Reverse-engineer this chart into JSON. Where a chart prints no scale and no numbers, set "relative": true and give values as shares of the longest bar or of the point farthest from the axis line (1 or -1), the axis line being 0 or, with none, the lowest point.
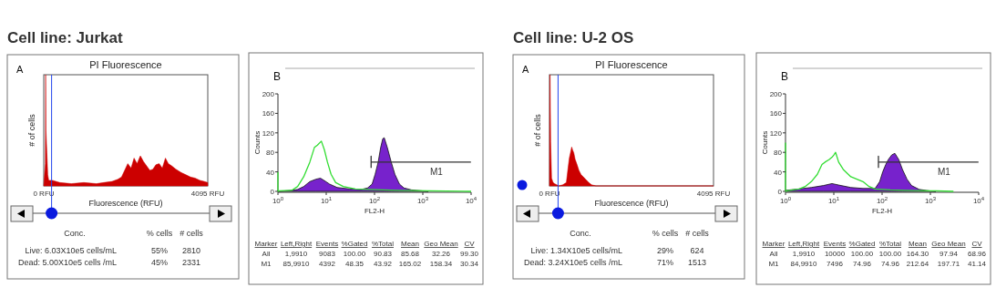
{
  "chart_data": [
    {
      "type": "area",
      "title": "PI Fluorescence",
      "xlabel": "Fluorescence (RFU)",
      "ylabel": "# of cells",
      "relative": true,
      "color": "#cc0000",
      "xlim": [
        0,
        4095
      ],
      "xticks": [
        {
          "value": 0,
          "label": "0 RFU"
        },
        {
          "value": 4095,
          "label": "4095 RFU"
        }
      ],
      "x": [
        0,
        40,
        47,
        55,
        78,
        100,
        125,
        219,
        400,
        689,
        1000,
        1315,
        1500,
        1707,
        1850,
        1942,
        2020,
        2098,
        2180,
        2255,
        2330,
        2412,
        2490,
        2568,
        2650,
        2725,
        2800,
        2881,
        2960,
        3038,
        3110,
        3195,
        3300,
        3430,
        3550,
        3664,
        3780,
        3899,
        4000,
        4095
      ],
      "values": [
        0,
        0.2,
        1,
        0.5,
        0.3,
        0.1,
        0.05,
        0.05,
        0.03,
        0.02,
        0.03,
        0.02,
        0.03,
        0.04,
        0.06,
        0.08,
        0.14,
        0.2,
        0.16,
        0.25,
        0.2,
        0.27,
        0.22,
        0.18,
        0.14,
        0.15,
        0.19,
        0.2,
        0.16,
        0.25,
        0.2,
        0.18,
        0.15,
        0.12,
        0.1,
        0.08,
        0.07,
        0.05,
        0.04,
        0.03
      ],
      "ref_lines": [
        {
          "axis": "x",
          "value": 196,
          "color": "#2244ee"
        }
      ],
      "annotations": [
        "Cell line: Jurkat",
        "A",
        "Conc.",
        "% cells",
        "# cells",
        "Live: 6.03X10e5 cells/mL",
        "55%",
        "2810",
        "Dead: 5.00X10e5 cells /mL",
        "45%",
        "2331"
      ]
    },
    {
      "type": "area",
      "xlabel": "FL2-H",
      "ylabel": "Counts",
      "log": "x",
      "xlim": [
        1,
        10000
      ],
      "ylim": [
        0,
        200
      ],
      "yticks": [
        0,
        40,
        80,
        120,
        160,
        200
      ],
      "xticks": [
        {
          "value": 1,
          "label": "10$^{0}$"
        },
        {
          "value": 10,
          "label": "10$^{1}$"
        },
        {
          "value": 100,
          "label": "10$^{2}$"
        },
        {
          "value": 1000,
          "label": "10$^{3}$"
        },
        {
          "value": 10000,
          "label": "10$^{4}$"
        }
      ],
      "series": [
        {
          "type": "area",
          "color": "#7722cc",
          "x": [
            1,
            1.92,
            2.56,
            3.42,
            4.57,
            6.11,
            7.6,
            9.17,
            11.7,
            16.8,
            30.1,
            53.7,
            71.7,
            89.1,
            103,
            119,
            134,
            148,
            159,
            184,
            222,
            264,
            328,
            407,
            585,
            971,
            1300
          ],
          "values": [
            0,
            2,
            4,
            10,
            20,
            25,
            27,
            22,
            15,
            8,
            5,
            4,
            7,
            15,
            35,
            60,
            90,
            108,
            110,
            90,
            60,
            35,
            15,
            7,
            3,
            1,
            0
          ]
        },
        {
          "type": "line",
          "color": "#33dd33",
          "x": [
            1,
            1,
            1.07,
            1.92,
            2.56,
            3.42,
            4.57,
            5.69,
            6.57,
            7.93,
            9.17,
            10.6,
            12.6,
            15.7,
            22.5,
            40.2,
            71.7,
            148,
            305,
            1300,
            10000
          ],
          "values": [
            40,
            0,
            1,
            2,
            10,
            30,
            60,
            90,
            95,
            103,
            85,
            60,
            35,
            18,
            10,
            5,
            4,
            3,
            2,
            1,
            0
          ]
        },
        {
          "type": "line",
          "name": "M1",
          "color": "#333333",
          "x": [
            85,
            85,
            85,
            9910
          ],
          "values": [
            48,
            72,
            60,
            60
          ]
        }
      ],
      "annotations": [
        "B",
        "Marker",
        "Left,Right",
        "Events",
        "%Gated",
        "%Total",
        "Mean",
        "Geo Mean",
        "CV",
        "All",
        "1,9910",
        "9083",
        "100.00",
        "90.83",
        "85.68",
        "32.26",
        "99.30",
        "M1",
        "85,9910",
        "4392",
        "48.35",
        "43.92",
        "165.02",
        "158.34",
        "30.34"
      ]
    },
    {
      "type": "area",
      "title": "PI Fluorescence",
      "xlabel": "Fluorescence (RFU)",
      "ylabel": "# of cells",
      "relative": true,
      "color": "#cc0000",
      "xlim": [
        0,
        4095
      ],
      "xticks": [
        {
          "value": 0,
          "label": "0 RFU"
        },
        {
          "value": 4095,
          "label": "4095 RFU"
        }
      ],
      "x": [
        0,
        10,
        15,
        30,
        52,
        90,
        126,
        180,
        237,
        330,
        421,
        460,
        495,
        525,
        554,
        580,
        606,
        640,
        680,
        735,
        791,
        850,
        902,
        980,
        1050,
        1160,
        4095
      ],
      "values": [
        0,
        1,
        1,
        0.4,
        0.07,
        0.03,
        0.02,
        0.01,
        0,
        0.01,
        0.03,
        0.15,
        0.25,
        0.3,
        0.35,
        0.32,
        0.3,
        0.24,
        0.2,
        0.14,
        0.1,
        0.08,
        0.06,
        0.03,
        0.01,
        0,
        0
      ],
      "ref_lines": [
        {
          "axis": "x",
          "value": 214,
          "color": "#2244ee"
        }
      ],
      "annotations": [
        "Cell line: U-2 OS",
        "A",
        "Conc.",
        "% cells",
        "# cells",
        "Live: 1.34X10e5 cells/mL",
        "29%",
        "624",
        "Dead: 3.24X10e5 cells /mL",
        "71%",
        "1513"
      ]
    },
    {
      "type": "area",
      "xlabel": "FL2-H",
      "ylabel": "Counts",
      "log": "x",
      "xlim": [
        1,
        10000
      ],
      "ylim": [
        0,
        200
      ],
      "yticks": [
        0,
        40,
        80,
        120,
        160,
        200
      ],
      "xticks": [
        {
          "value": 1,
          "label": "10$^{0}$"
        },
        {
          "value": 10,
          "label": "10$^{1}$"
        },
        {
          "value": 100,
          "label": "10$^{2}$"
        },
        {
          "value": 1000,
          "label": "10$^{3}$"
        },
        {
          "value": 10000,
          "label": "10$^{4}$"
        }
      ],
      "series": [
        {
          "type": "area",
          "color": "#7722cc",
          "x": [
            1,
            1.92,
            3.42,
            6.11,
            9.17,
            12.6,
            22.5,
            40.2,
            71.7,
            89.1,
            103,
            119,
            134,
            159,
            184,
            222,
            264,
            328,
            407,
            585,
            971,
            1300
          ],
          "values": [
            2,
            5,
            8,
            12,
            16,
            13,
            8,
            6,
            6,
            20,
            40,
            55,
            65,
            75,
            78,
            65,
            45,
            25,
            12,
            4,
            1,
            0
          ]
        },
        {
          "type": "line",
          "color": "#33dd33",
          "x": [
            1,
            1,
            1.07,
            1.92,
            2.56,
            3.42,
            4.57,
            5.69,
            6.57,
            7.93,
            9.17,
            10.1,
            10.9,
            12.6,
            15.7,
            22.5,
            30.1,
            40.2,
            53.7,
            71.7,
            148,
            305,
            1300,
            3000
          ],
          "values": [
            100,
            0,
            1,
            5,
            10,
            20,
            35,
            55,
            60,
            65,
            70,
            75,
            80,
            60,
            45,
            30,
            25,
            20,
            10,
            5,
            3,
            2,
            1,
            0
          ]
        },
        {
          "type": "line",
          "name": "M1",
          "color": "#333333",
          "x": [
            84,
            84,
            84,
            9910
          ],
          "values": [
            48,
            72,
            60,
            60
          ]
        }
      ],
      "annotations": [
        "B",
        "Marker",
        "Left,Right",
        "Events",
        "%Gated",
        "%Total",
        "Mean",
        "Geo Mean",
        "CV",
        "All",
        "1,9910",
        "10000",
        "100.00",
        "100.00",
        "164.30",
        "97.94",
        "68.96",
        "M1",
        "84,9910",
        "7496",
        "74.96",
        "74.96",
        "212.64",
        "197.71",
        "41.14"
      ]
    }
  ]
}
